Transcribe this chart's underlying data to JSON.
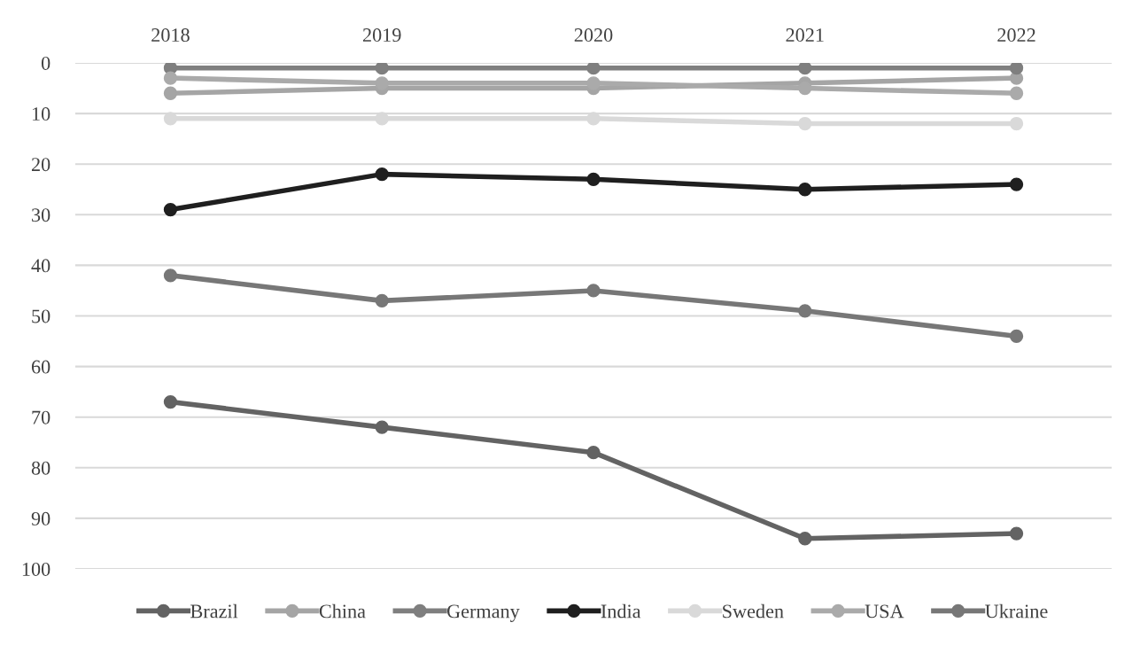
{
  "chart_data": {
    "type": "line",
    "categories": [
      "2018",
      "2019",
      "2020",
      "2021",
      "2022"
    ],
    "series": [
      {
        "name": "Brazil",
        "color": "#636363",
        "values": [
          67,
          72,
          77,
          94,
          93
        ]
      },
      {
        "name": "China",
        "color": "#a5a5a5",
        "values": [
          6,
          5,
          5,
          4,
          3
        ]
      },
      {
        "name": "Germany",
        "color": "#7f7f7f",
        "values": [
          1,
          1,
          1,
          1,
          1
        ]
      },
      {
        "name": "India",
        "color": "#1f1f1f",
        "values": [
          29,
          22,
          23,
          25,
          24
        ]
      },
      {
        "name": "Sweden",
        "color": "#d9d9d9",
        "values": [
          11,
          11,
          11,
          12,
          12
        ]
      },
      {
        "name": "USA",
        "color": "#aaaaaa",
        "values": [
          3,
          4,
          4,
          5,
          6
        ]
      },
      {
        "name": "Ukraine",
        "color": "#777777",
        "values": [
          42,
          47,
          45,
          49,
          54
        ]
      }
    ],
    "ylim": [
      100,
      0
    ],
    "yticks": [
      0,
      10,
      20,
      30,
      40,
      50,
      60,
      70,
      80,
      90,
      100
    ],
    "grid": "y",
    "legend": "bottom",
    "marker": "circle",
    "line_style": "solid"
  }
}
